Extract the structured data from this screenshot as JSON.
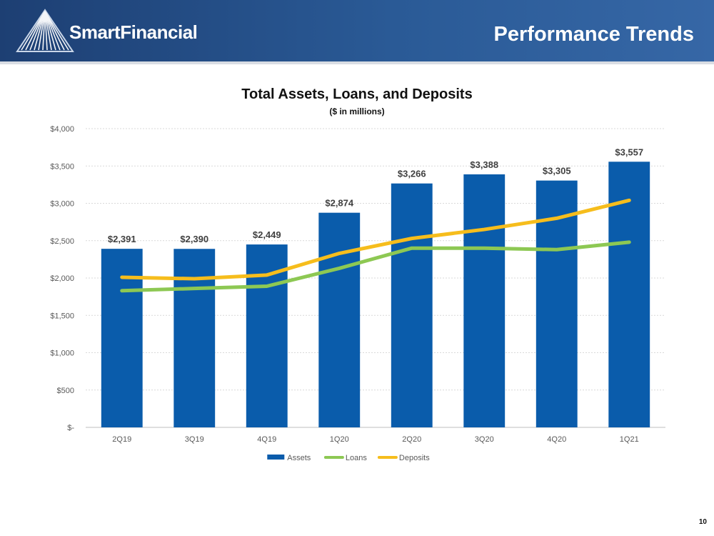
{
  "header": {
    "brand": "SmartFinancial",
    "title": "Performance Trends"
  },
  "page_number": "10",
  "colors": {
    "header_blue": "#1d3f73",
    "assets": "#0a5cab",
    "loans": "#8dc853",
    "deposits": "#f6bd1c"
  },
  "icons": {
    "logo": "sunburst-pyramid-logo"
  },
  "chart_data": {
    "type": "bar",
    "title": "Total Assets, Loans, and Deposits",
    "subtitle": "($ in millions)",
    "categories": [
      "2Q19",
      "3Q19",
      "4Q19",
      "1Q20",
      "2Q20",
      "3Q20",
      "4Q20",
      "1Q21"
    ],
    "ylim": [
      0,
      4000
    ],
    "yticks": [
      0,
      500,
      1000,
      1500,
      2000,
      2500,
      3000,
      3500,
      4000
    ],
    "ytick_labels": [
      "$-",
      "$500",
      "$1,000",
      "$1,500",
      "$2,000",
      "$2,500",
      "$3,000",
      "$3,500",
      "$4,000"
    ],
    "grid": true,
    "legend_position": "bottom",
    "series": [
      {
        "name": "Assets",
        "type": "bar",
        "values": [
          2391,
          2390,
          2449,
          2874,
          3266,
          3388,
          3305,
          3557
        ],
        "labels": [
          "$2,391",
          "$2,390",
          "$2,449",
          "$2,874",
          "$3,266",
          "$3,388",
          "$3,305",
          "$3,557"
        ],
        "color": "#0a5cab"
      },
      {
        "name": "Loans",
        "type": "line",
        "values": [
          1830,
          1860,
          1890,
          2130,
          2400,
          2400,
          2380,
          2480
        ],
        "color": "#8dc853"
      },
      {
        "name": "Deposits",
        "type": "line",
        "values": [
          2010,
          1990,
          2040,
          2330,
          2530,
          2650,
          2800,
          3040
        ],
        "color": "#f6bd1c"
      }
    ]
  }
}
